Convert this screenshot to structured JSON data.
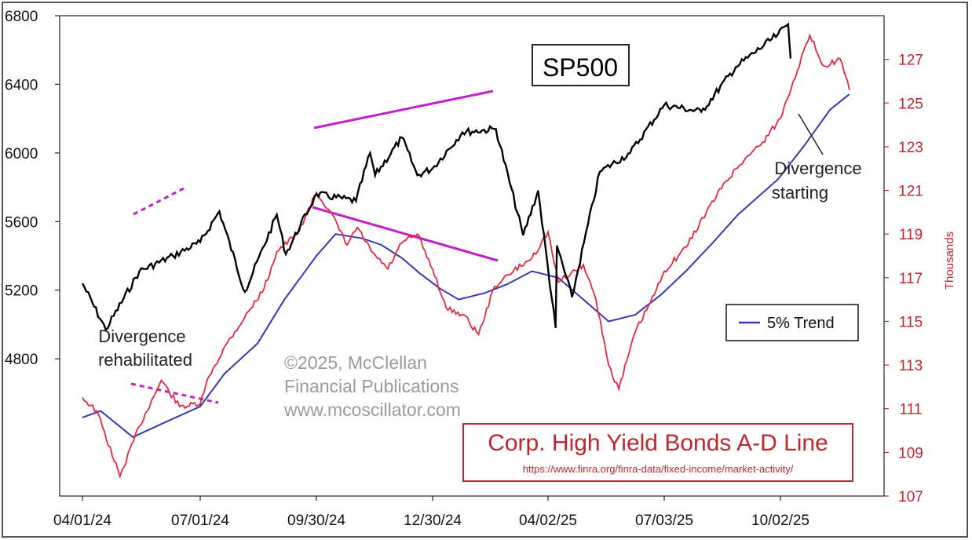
{
  "chart_data": {
    "type": "line",
    "x_ticks": [
      "04/01/24",
      "07/01/24",
      "09/30/24",
      "12/30/24",
      "04/02/25",
      "07/03/25",
      "10/02/25"
    ],
    "y_left": {
      "ticks": [
        "6800",
        "6400",
        "6000",
        "5600",
        "5200",
        "4800"
      ],
      "range": [
        4000,
        6800
      ]
    },
    "y_right": {
      "ticks": [
        "127",
        "125",
        "123",
        "121",
        "119",
        "117",
        "115",
        "113",
        "111",
        "109",
        "107"
      ],
      "range": [
        107,
        129
      ],
      "label": "Thousands"
    },
    "series": [
      {
        "name": "SP500",
        "axis": "left",
        "color": "#000000",
        "points": [
          [
            "04/01/24",
            5240
          ],
          [
            "04/19/24",
            4970
          ],
          [
            "05/15/24",
            5310
          ],
          [
            "06/10/24",
            5400
          ],
          [
            "07/01/24",
            5480
          ],
          [
            "07/16/24",
            5660
          ],
          [
            "08/05/24",
            5190
          ],
          [
            "08/30/24",
            5640
          ],
          [
            "09/06/24",
            5410
          ],
          [
            "09/30/24",
            5760
          ],
          [
            "10/31/24",
            5720
          ],
          [
            "11/11/24",
            6000
          ],
          [
            "11/15/24",
            5870
          ],
          [
            "12/06/24",
            6090
          ],
          [
            "12/18/24",
            5870
          ],
          [
            "12/30/24",
            5910
          ],
          [
            "01/23/25",
            6120
          ],
          [
            "02/19/25",
            6140
          ],
          [
            "03/13/25",
            5520
          ],
          [
            "03/25/25",
            5780
          ],
          [
            "04/08/25",
            4980
          ],
          [
            "04/09/25",
            5460
          ],
          [
            "04/21/25",
            5160
          ],
          [
            "05/13/25",
            5890
          ],
          [
            "06/06/25",
            6000
          ],
          [
            "07/03/25",
            6280
          ],
          [
            "08/01/25",
            6240
          ],
          [
            "08/28/25",
            6500
          ],
          [
            "09/30/25",
            6690
          ],
          [
            "10/08/25",
            6750
          ],
          [
            "10/10/25",
            6550
          ]
        ]
      },
      {
        "name": "Corp. High Yield Bonds A-D Line",
        "axis": "right",
        "color": "#e2283a",
        "points": [
          [
            "04/01/24",
            111.5
          ],
          [
            "04/12/24",
            110.9
          ],
          [
            "04/30/24",
            107.9
          ],
          [
            "05/15/24",
            110.2
          ],
          [
            "06/01/24",
            112.3
          ],
          [
            "06/15/24",
            111.1
          ],
          [
            "07/01/24",
            111.2
          ],
          [
            "07/08/24",
            112.5
          ],
          [
            "07/22/24",
            114.0
          ],
          [
            "08/05/24",
            115.2
          ],
          [
            "08/20/24",
            116.5
          ],
          [
            "08/30/24",
            118.2
          ],
          [
            "09/15/24",
            119.0
          ],
          [
            "09/30/24",
            120.9
          ],
          [
            "10/10/24",
            120.1
          ],
          [
            "10/24/24",
            118.5
          ],
          [
            "11/01/24",
            119.3
          ],
          [
            "11/12/24",
            118.2
          ],
          [
            "11/25/24",
            117.4
          ],
          [
            "12/06/24",
            118.6
          ],
          [
            "12/18/24",
            119.0
          ],
          [
            "12/30/24",
            117.4
          ],
          [
            "01/10/25",
            115.6
          ],
          [
            "01/24/25",
            115.3
          ],
          [
            "02/05/25",
            114.4
          ],
          [
            "02/18/25",
            116.6
          ],
          [
            "03/05/25",
            117.3
          ],
          [
            "03/20/25",
            117.9
          ],
          [
            "04/02/25",
            119.1
          ],
          [
            "04/10/25",
            116.8
          ],
          [
            "04/30/25",
            117.6
          ],
          [
            "05/10/25",
            116.0
          ],
          [
            "05/20/25",
            113.0
          ],
          [
            "05/28/25",
            111.9
          ],
          [
            "06/10/25",
            114.5
          ],
          [
            "06/25/25",
            116.2
          ],
          [
            "07/03/25",
            117.3
          ],
          [
            "07/20/25",
            118.4
          ],
          [
            "08/05/25",
            120.0
          ],
          [
            "08/20/25",
            121.4
          ],
          [
            "09/05/25",
            122.5
          ],
          [
            "09/18/25",
            123.2
          ],
          [
            "10/02/25",
            124.3
          ],
          [
            "10/12/25",
            126.0
          ],
          [
            "10/25/25",
            128.1
          ],
          [
            "11/05/25",
            126.7
          ],
          [
            "11/18/25",
            127.0
          ],
          [
            "11/25/25",
            125.6
          ]
        ]
      },
      {
        "name": "5% Trend",
        "axis": "right",
        "color": "#3737b5",
        "points": [
          [
            "04/01/24",
            110.6
          ],
          [
            "04/15/24",
            110.9
          ],
          [
            "05/10/24",
            109.7
          ],
          [
            "06/01/24",
            110.3
          ],
          [
            "07/01/24",
            111.1
          ],
          [
            "07/20/24",
            112.6
          ],
          [
            "08/15/24",
            114.0
          ],
          [
            "09/05/24",
            116.0
          ],
          [
            "09/30/24",
            118.0
          ],
          [
            "10/15/24",
            119.0
          ],
          [
            "11/05/24",
            118.8
          ],
          [
            "11/20/24",
            118.5
          ],
          [
            "12/06/24",
            117.9
          ],
          [
            "12/20/24",
            117.2
          ],
          [
            "01/05/25",
            116.5
          ],
          [
            "01/20/25",
            116.0
          ],
          [
            "02/10/25",
            116.3
          ],
          [
            "02/28/25",
            116.7
          ],
          [
            "03/20/25",
            117.3
          ],
          [
            "04/10/25",
            117.0
          ],
          [
            "04/30/25",
            116.0
          ],
          [
            "05/20/25",
            115.0
          ],
          [
            "06/10/25",
            115.3
          ],
          [
            "06/30/25",
            116.2
          ],
          [
            "07/20/25",
            117.3
          ],
          [
            "08/10/25",
            118.6
          ],
          [
            "08/30/25",
            119.9
          ],
          [
            "09/30/25",
            121.5
          ],
          [
            "10/20/25",
            123.0
          ],
          [
            "11/10/25",
            124.7
          ],
          [
            "11/25/25",
            125.4
          ]
        ]
      }
    ],
    "annotations": {
      "sp500_label": "SP500",
      "divergence_starting": [
        "Divergence",
        "starting"
      ],
      "divergence_rehabilitated": [
        "Divergence",
        "rehabilitated"
      ],
      "watermark": [
        "©2025, McClellan",
        "Financial Publications",
        "www.mcoscillator.com"
      ],
      "ad_title": "Corp. High Yield Bonds A-D Line",
      "ad_url": "https://www.finra.org/finra-data/fixed-income/market-activity/"
    },
    "legend": {
      "placement": "right",
      "entry": "5% Trend",
      "color": "#3737b5"
    },
    "trendline_color": "#c21fcf",
    "grid": false
  }
}
